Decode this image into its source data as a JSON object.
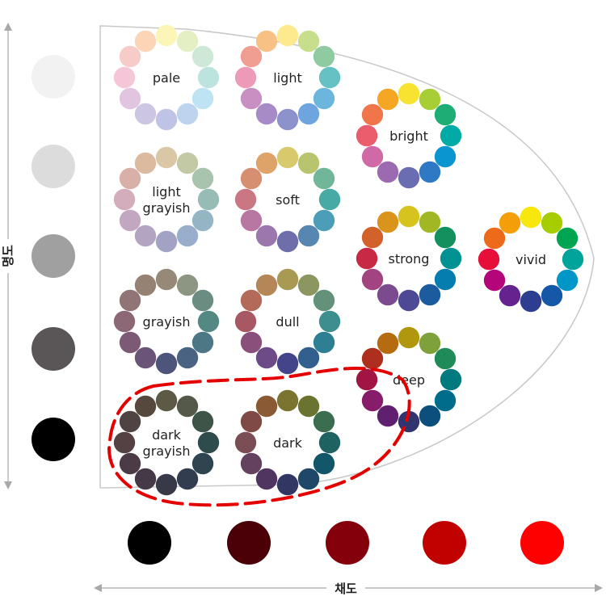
{
  "axes": {
    "lightness_label": "명도",
    "saturation_label": "채도"
  },
  "lightness_scale": [
    "#f2f2f2",
    "#dcdcdc",
    "#a0a0a0",
    "#5a5657",
    "#000000"
  ],
  "saturation_scale": [
    "#000000",
    "#4a0006",
    "#84000a",
    "#c10000",
    "#ff0000"
  ],
  "tones": [
    {
      "id": "pale",
      "lines": [
        "pale"
      ],
      "colors": [
        "#fbf6b8",
        "#e4efc4",
        "#cde8d4",
        "#bde3de",
        "#bee3f2",
        "#bed4ee",
        "#bfc4e6",
        "#ccc6e3",
        "#e1c4e0",
        "#f5c6d7",
        "#f7cbc7",
        "#fbd5b5"
      ]
    },
    {
      "id": "light",
      "lines": [
        "light"
      ],
      "colors": [
        "#fdea8e",
        "#c7df8d",
        "#8ecba1",
        "#66c1c4",
        "#6cb6dd",
        "#6fa5de",
        "#8d91cc",
        "#a68bc6",
        "#c88fc3",
        "#ec9ab7",
        "#f09e92",
        "#f7c185"
      ]
    },
    {
      "id": "bright",
      "lines": [
        "bright"
      ],
      "colors": [
        "#f7e330",
        "#a8ce36",
        "#1cae74",
        "#00aba6",
        "#0a94d0",
        "#2f79c4",
        "#6b6db3",
        "#9c6ab0",
        "#d06aa6",
        "#eb5c6d",
        "#f1754b",
        "#f5a623"
      ]
    },
    {
      "id": "light-grayish",
      "lines": [
        "light",
        "grayish"
      ],
      "colors": [
        "#d9c7a6",
        "#c2c9a4",
        "#a8c3ae",
        "#97bcb5",
        "#94b6c4",
        "#98aecc",
        "#a2a3c4",
        "#b3a4c2",
        "#c2a7c0",
        "#d3adbc",
        "#d8b0a7",
        "#dbbaa0"
      ]
    },
    {
      "id": "soft",
      "lines": [
        "soft"
      ],
      "colors": [
        "#d8c96c",
        "#b9c46e",
        "#71b698",
        "#48aaa5",
        "#4c9eb8",
        "#5786b1",
        "#6d6eaa",
        "#9a78ad",
        "#b876a2",
        "#cb7683",
        "#d78f72",
        "#dea369"
      ]
    },
    {
      "id": "strong",
      "lines": [
        "strong"
      ],
      "colors": [
        "#d6c31e",
        "#a2b724",
        "#12915f",
        "#009292",
        "#067daf",
        "#1b5b9e",
        "#4c4a94",
        "#7b4a8f",
        "#a14480",
        "#c92a43",
        "#d0622a",
        "#da941c"
      ]
    },
    {
      "id": "vivid",
      "lines": [
        "vivid"
      ],
      "colors": [
        "#f7e70d",
        "#a6cd00",
        "#00a551",
        "#00a49a",
        "#0096c7",
        "#1558a7",
        "#2d3d8f",
        "#65238f",
        "#b5057a",
        "#e60f3a",
        "#ee6a1b",
        "#f49f0a"
      ]
    },
    {
      "id": "grayish",
      "lines": [
        "grayish"
      ],
      "colors": [
        "#968977",
        "#8c9682",
        "#6b8c80",
        "#548883",
        "#4c7885",
        "#4a6383",
        "#4e557b",
        "#6a5578",
        "#7c5a75",
        "#8c6775",
        "#917475",
        "#968272"
      ]
    },
    {
      "id": "dull",
      "lines": [
        "dull"
      ],
      "colors": [
        "#a89953",
        "#8c9660",
        "#63917a",
        "#3c8f8c",
        "#2f7f94",
        "#325f8d",
        "#44448a",
        "#6c4b86",
        "#8a4f7a",
        "#a85863",
        "#b36a59",
        "#b58658"
      ]
    },
    {
      "id": "deep",
      "lines": [
        "deep"
      ],
      "colors": [
        "#b0970d",
        "#7ea13c",
        "#1e8b59",
        "#007a7e",
        "#006c8b",
        "#0c4f7d",
        "#31356e",
        "#5f216f",
        "#871d6a",
        "#a21443",
        "#ae2f1d",
        "#b56b10"
      ]
    },
    {
      "id": "dark-grayish",
      "lines": [
        "dark",
        "grayish"
      ],
      "colors": [
        "#5c5a45",
        "#54594a",
        "#3d5448",
        "#2e4c4c",
        "#2e4550",
        "#333d50",
        "#383948",
        "#453948",
        "#4c3b46",
        "#544144",
        "#4f4343",
        "#56483c"
      ]
    },
    {
      "id": "dark",
      "lines": [
        "dark"
      ],
      "colors": [
        "#7a7430",
        "#6a732f",
        "#3a6e4e",
        "#1e6262",
        "#12566a",
        "#1f4767",
        "#313663",
        "#4f355f",
        "#654160",
        "#7b4e55",
        "#7f4a45",
        "#8a5a35"
      ]
    }
  ]
}
